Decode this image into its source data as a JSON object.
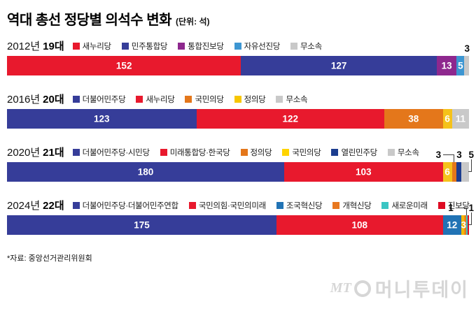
{
  "source_note": "*자료: 중앙선거관리위원회",
  "watermark": {
    "mt": "MT",
    "name": "머니투데이"
  },
  "chart_data": {
    "type": "bar",
    "variant": "horizontal-stacked",
    "title": "역대 총선 정당별 의석수 변화",
    "unit_label": "(단위: 석)",
    "total_seats_per_row": 300,
    "legend_position": "inline-above-each-bar",
    "rows": [
      {
        "year": "2012년",
        "assembly": "19대",
        "legend": [
          {
            "label": "새누리당",
            "color": "#E8192D"
          },
          {
            "label": "민주통합당",
            "color": "#363D99"
          },
          {
            "label": "통합진보당",
            "color": "#8E288E"
          },
          {
            "label": "자유선진당",
            "color": "#3D96D2"
          },
          {
            "label": "무소속",
            "color": "#C9C9C9"
          }
        ],
        "segments": [
          {
            "party": "새누리당",
            "value": 152,
            "color": "#E8192D",
            "label": "inside"
          },
          {
            "party": "민주통합당",
            "value": 127,
            "color": "#363D99",
            "label": "inside"
          },
          {
            "party": "통합진보당",
            "value": 13,
            "color": "#8E288E",
            "label": "inside"
          },
          {
            "party": "자유선진당",
            "value": 5,
            "color": "#3D96D2",
            "label": "inside"
          },
          {
            "party": "무소속",
            "value": 3,
            "color": "#C9C9C9",
            "label": "above",
            "callout": "none"
          }
        ]
      },
      {
        "year": "2016년",
        "assembly": "20대",
        "legend": [
          {
            "label": "더불어민주당",
            "color": "#363D99"
          },
          {
            "label": "새누리당",
            "color": "#E8192D"
          },
          {
            "label": "국민의당",
            "color": "#E4771B"
          },
          {
            "label": "정의당",
            "color": "#F7C600"
          },
          {
            "label": "무소속",
            "color": "#C9C9C9"
          }
        ],
        "segments": [
          {
            "party": "더불어민주당",
            "value": 123,
            "color": "#363D99",
            "label": "inside"
          },
          {
            "party": "새누리당",
            "value": 122,
            "color": "#E8192D",
            "label": "inside"
          },
          {
            "party": "국민의당",
            "value": 38,
            "color": "#E4771B",
            "label": "inside"
          },
          {
            "party": "정의당",
            "value": 6,
            "color": "#F5C21B",
            "label": "inside"
          },
          {
            "party": "무소속",
            "value": 11,
            "color": "#C9C9C9",
            "label": "inside"
          }
        ]
      },
      {
        "year": "2020년",
        "assembly": "21대",
        "legend": [
          {
            "label": "더불어민주당·시민당",
            "color": "#363D99"
          },
          {
            "label": "미래통합당·한국당",
            "color": "#E8192D"
          },
          {
            "label": "정의당",
            "color": "#E4771B"
          },
          {
            "label": "국민의당",
            "color": "#FFD400"
          },
          {
            "label": "열린민주당",
            "color": "#1C3D8F"
          },
          {
            "label": "무소속",
            "color": "#C9C9C9"
          }
        ],
        "segments": [
          {
            "party": "더불어민주당·시민당",
            "value": 180,
            "color": "#363D99",
            "label": "inside"
          },
          {
            "party": "미래통합당·한국당",
            "value": 103,
            "color": "#E8192D",
            "label": "inside"
          },
          {
            "party": "정의당",
            "value": 6,
            "color": "#F5C21B",
            "label": "inside"
          },
          {
            "party": "국민의당",
            "value": 3,
            "color": "#E4771B",
            "label": "above",
            "callout": "elbow"
          },
          {
            "party": "열린민주당",
            "value": 3,
            "color": "#1C3D8F",
            "label": "above",
            "callout": "direct"
          },
          {
            "party": "무소속",
            "value": 5,
            "color": "#C9C9C9",
            "label": "above",
            "callout": "hook"
          }
        ]
      },
      {
        "year": "2024년",
        "assembly": "22대",
        "legend": [
          {
            "label": "더불어민주당·더불어민주연합",
            "color": "#363D99"
          },
          {
            "label": "국민의힘·국민의미래",
            "color": "#E8192D"
          },
          {
            "label": "조국혁신당",
            "color": "#2173B5"
          },
          {
            "label": "개혁신당",
            "color": "#E87820"
          },
          {
            "label": "새로운미래",
            "color": "#3BC5C3"
          },
          {
            "label": "진보당",
            "color": "#DE0C23"
          }
        ],
        "segments": [
          {
            "party": "더불어민주당·더불어민주연합",
            "value": 175,
            "color": "#363D99",
            "label": "inside"
          },
          {
            "party": "국민의힘·국민의미래",
            "value": 108,
            "color": "#E8192D",
            "label": "inside"
          },
          {
            "party": "조국혁신당",
            "value": 12,
            "color": "#2173B5",
            "label": "inside"
          },
          {
            "party": "개혁신당",
            "value": 3,
            "color": "#F2B705",
            "color2": "#E87820",
            "label": "inside"
          },
          {
            "party": "새로운미래",
            "value": 1,
            "color": "#3BC5C3",
            "label": "above",
            "callout": "elbow"
          },
          {
            "party": "진보당",
            "value": 1,
            "color": "#DE0C23",
            "label": "above",
            "callout": "hook"
          }
        ]
      }
    ]
  }
}
